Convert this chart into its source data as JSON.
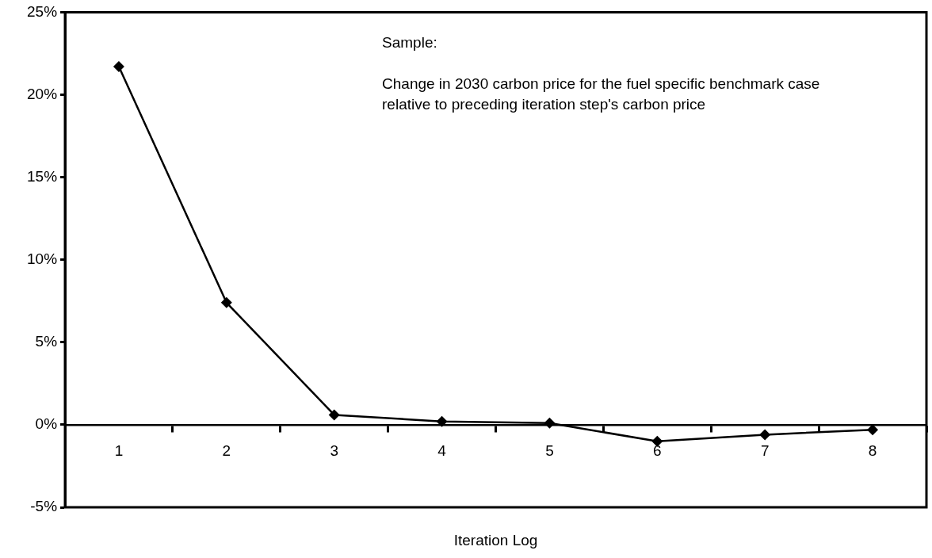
{
  "chart_data": {
    "type": "line",
    "xlabel": "Iteration Log",
    "categories": [
      "1",
      "2",
      "3",
      "4",
      "5",
      "6",
      "7",
      "8"
    ],
    "series": [
      {
        "color": "#000000",
        "values": [
          21.7,
          7.4,
          0.6,
          0.2,
          0.1,
          -1.0,
          -0.6,
          -0.3
        ]
      }
    ],
    "ylim": [
      -5,
      25
    ],
    "yticks": [
      {
        "value": -5,
        "label": "-5%"
      },
      {
        "value": 0,
        "label": "0%"
      },
      {
        "value": 5,
        "label": "5%"
      },
      {
        "value": 10,
        "label": "10%"
      },
      {
        "value": 15,
        "label": "15%"
      },
      {
        "value": 20,
        "label": "20%"
      },
      {
        "value": 25,
        "label": "25%"
      }
    ],
    "annotations": [
      "Sample:",
      "Change in 2030 carbon price for the fuel specific benchmark case relative to preceding iteration step's carbon price"
    ],
    "marker": "diamond",
    "line_style": "solid",
    "legend": false
  }
}
